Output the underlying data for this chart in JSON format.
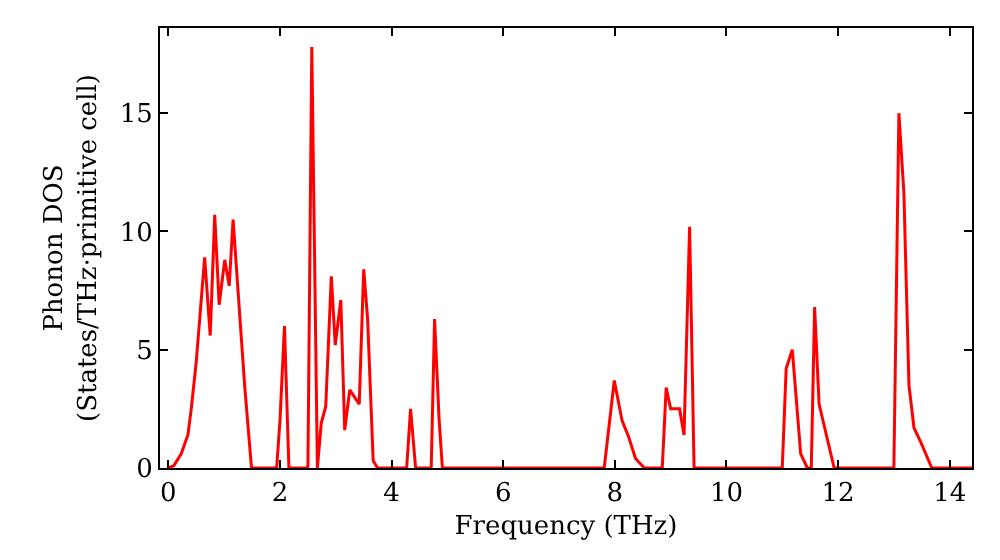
{
  "chart_data": {
    "type": "line",
    "xlabel": "Frequency (THz)",
    "ylabel": "Phonon DOS\n(States/THz·primitive cell)",
    "xlim": [
      -0.15,
      14.4
    ],
    "ylim": [
      0,
      18.6
    ],
    "xticks": [
      0,
      2,
      4,
      6,
      8,
      10,
      12,
      14
    ],
    "yticks": [
      0,
      5,
      10,
      15
    ],
    "marker": "none",
    "line_style": "solid",
    "series": [
      {
        "color": "#ff0000",
        "x": [
          0,
          0.1,
          0.23,
          0.35,
          0.41,
          0.5,
          0.65,
          0.75,
          0.83,
          0.91,
          1.01,
          1.09,
          1.16,
          1.31,
          1.37,
          1.49,
          1.94,
          2.0,
          2.08,
          2.16,
          2.5,
          2.57,
          2.67,
          2.74,
          2.82,
          2.92,
          2.99,
          3.09,
          3.16,
          3.25,
          3.42,
          3.5,
          3.57,
          3.67,
          3.75,
          4.27,
          4.34,
          4.43,
          4.71,
          4.77,
          4.85,
          4.91,
          7.81,
          7.99,
          8.13,
          8.25,
          8.37,
          8.53,
          8.85,
          8.92,
          9.0,
          9.16,
          9.24,
          9.34,
          9.42,
          11.0,
          11.07,
          11.18,
          11.33,
          11.45,
          11.52,
          11.58,
          11.66,
          11.76,
          11.93,
          13.0,
          13.09,
          13.18,
          13.27,
          13.36,
          13.48,
          13.68,
          14.4
        ],
        "values": [
          0,
          0.1,
          0.6,
          1.4,
          2.5,
          4.5,
          8.9,
          5.6,
          10.7,
          6.9,
          8.8,
          7.7,
          10.5,
          5.4,
          3.4,
          0,
          0,
          2.0,
          6.0,
          0,
          0,
          17.8,
          0,
          1.9,
          2.6,
          8.1,
          5.2,
          7.1,
          1.6,
          3.3,
          2.7,
          8.4,
          6.3,
          0.3,
          0,
          0,
          2.5,
          0,
          0,
          6.3,
          2.1,
          0,
          0,
          3.7,
          2.0,
          1.3,
          0.4,
          0,
          0,
          3.4,
          2.5,
          2.5,
          1.4,
          10.2,
          0,
          0,
          4.2,
          5.0,
          0.6,
          0,
          0,
          6.8,
          2.7,
          1.7,
          0,
          0,
          15.0,
          11.6,
          3.5,
          1.7,
          1.1,
          0,
          0
        ]
      }
    ]
  }
}
